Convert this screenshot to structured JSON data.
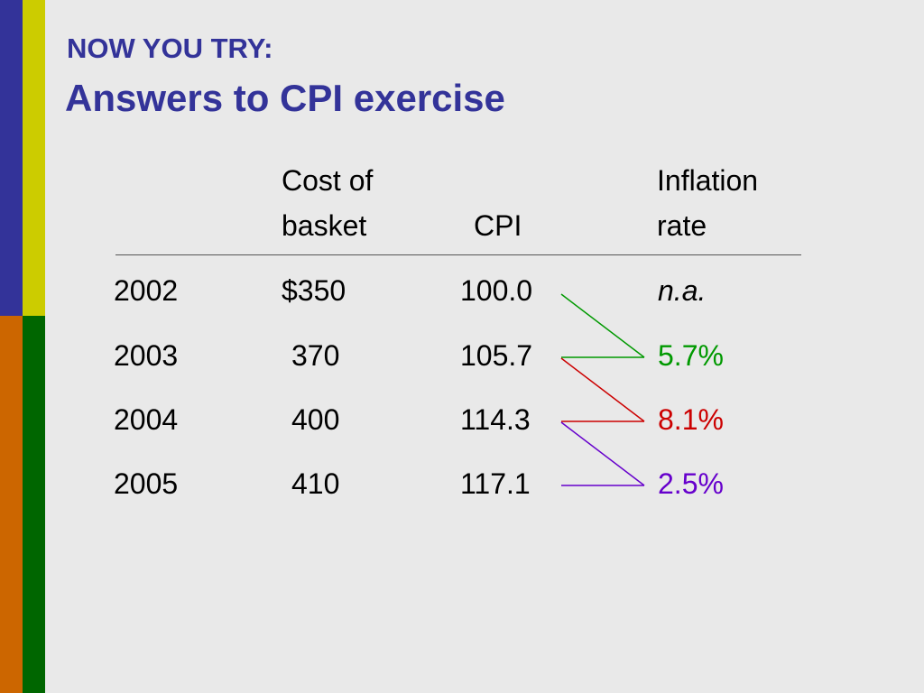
{
  "slide": {
    "subtitle": "NOW YOU TRY:",
    "title": "Answers to CPI exercise"
  },
  "colors": {
    "bar_blue": "#333399",
    "bar_yellow": "#CCCC00",
    "bar_orange": "#CC6600",
    "bar_green": "#006600",
    "title": "#333399",
    "link_green": "#009900",
    "link_red": "#CC0000",
    "link_purple": "#6600CC",
    "background": "#E9E9E9"
  },
  "table": {
    "headers": {
      "cost_line1": "Cost of",
      "cost_line2": "basket",
      "cpi": "CPI",
      "inflation_line1": "Inflation",
      "inflation_line2": "rate"
    },
    "rows": [
      {
        "year": "2002",
        "cost": "$350",
        "cpi": "100.0",
        "inflation": "n.a."
      },
      {
        "year": "2003",
        "cost": "370",
        "cpi": "105.7",
        "inflation": "5.7%"
      },
      {
        "year": "2004",
        "cost": "400",
        "cpi": "114.3",
        "inflation": "8.1%"
      },
      {
        "year": "2005",
        "cost": "410",
        "cpi": "117.1",
        "inflation": "2.5%"
      }
    ]
  }
}
